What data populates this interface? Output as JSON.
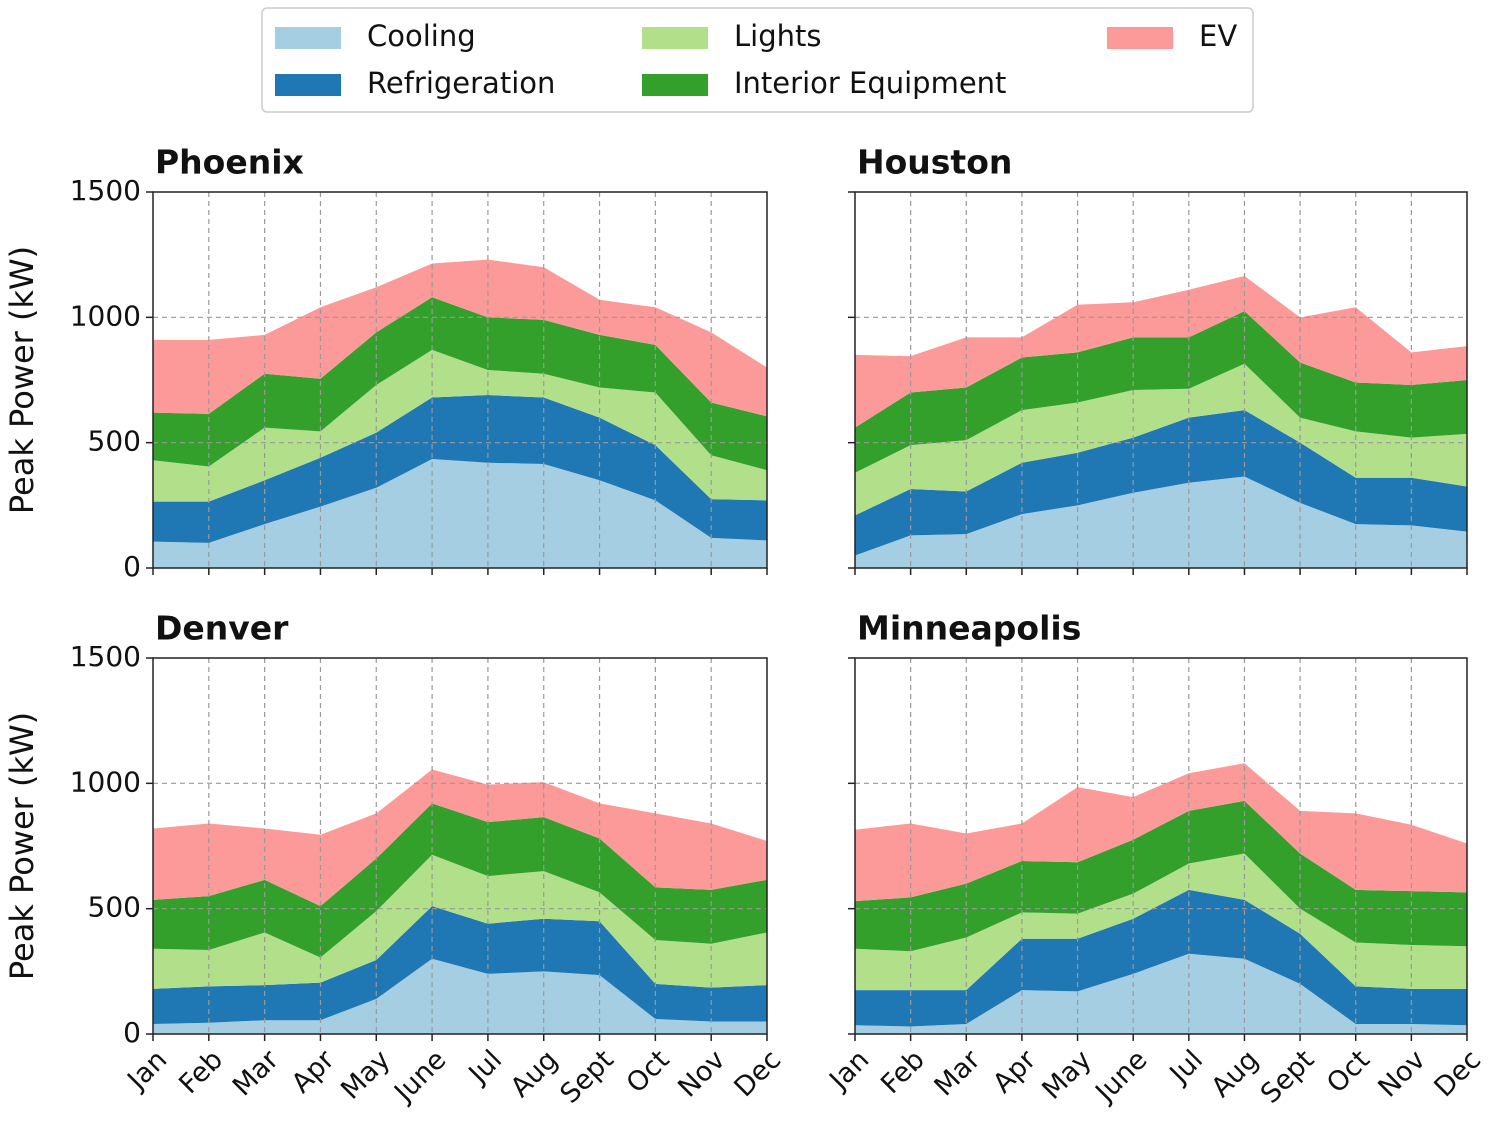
{
  "chart_data": [
    {
      "type": "area",
      "title": "Phoenix",
      "ylabel": "Peak Power (kW)",
      "ylim": [
        0,
        1500
      ],
      "yticks": [
        0,
        500,
        1000,
        1500
      ],
      "grid": true,
      "series": [
        {
          "name": "Cooling",
          "color": "#a6cee3",
          "values": [
            105,
            100,
            175,
            245,
            320,
            435,
            420,
            415,
            350,
            270,
            120,
            110
          ]
        },
        {
          "name": "Refrigeration",
          "color": "#1f78b4",
          "values": [
            160,
            165,
            175,
            195,
            220,
            245,
            270,
            265,
            250,
            220,
            155,
            160
          ]
        },
        {
          "name": "Lights",
          "color": "#b2df8a",
          "values": [
            165,
            140,
            210,
            105,
            190,
            190,
            100,
            95,
            120,
            210,
            175,
            120
          ]
        },
        {
          "name": "Interior Equipment",
          "color": "#33a02c",
          "values": [
            190,
            210,
            215,
            210,
            210,
            210,
            210,
            215,
            210,
            190,
            210,
            215
          ]
        },
        {
          "name": "EV",
          "color": "#fb9a99",
          "values": [
            290,
            295,
            155,
            285,
            180,
            135,
            230,
            210,
            140,
            150,
            280,
            195
          ]
        }
      ]
    },
    {
      "type": "area",
      "title": "Houston",
      "ylim": [
        0,
        1500
      ],
      "yticks": [
        0,
        500,
        1000,
        1500
      ],
      "grid": true,
      "series": [
        {
          "color": "#a6cee3",
          "values": [
            50,
            130,
            135,
            215,
            250,
            300,
            340,
            365,
            260,
            175,
            170,
            145
          ]
        },
        {
          "color": "#1f78b4",
          "values": [
            160,
            185,
            170,
            205,
            210,
            220,
            260,
            265,
            240,
            185,
            190,
            180
          ]
        },
        {
          "color": "#b2df8a",
          "values": [
            170,
            175,
            205,
            210,
            200,
            190,
            115,
            185,
            100,
            185,
            160,
            210
          ]
        },
        {
          "color": "#33a02c",
          "values": [
            180,
            210,
            210,
            210,
            200,
            210,
            205,
            210,
            220,
            195,
            210,
            215
          ]
        },
        {
          "color": "#fb9a99",
          "values": [
            290,
            145,
            200,
            80,
            190,
            140,
            190,
            140,
            180,
            300,
            130,
            135
          ]
        }
      ]
    },
    {
      "type": "area",
      "title": "Denver",
      "ylabel": "Peak Power (kW)",
      "categories": [
        "Jan",
        "Feb",
        "Mar",
        "Apr",
        "May",
        "June",
        "Jul",
        "Aug",
        "Sept",
        "Oct",
        "Nov",
        "Dec"
      ],
      "ylim": [
        0,
        1500
      ],
      "yticks": [
        0,
        500,
        1000,
        1500
      ],
      "grid": true,
      "series": [
        {
          "color": "#a6cee3",
          "values": [
            40,
            45,
            55,
            55,
            140,
            300,
            240,
            250,
            235,
            60,
            50,
            50
          ]
        },
        {
          "color": "#1f78b4",
          "values": [
            140,
            145,
            140,
            150,
            155,
            210,
            200,
            210,
            215,
            140,
            135,
            145
          ]
        },
        {
          "color": "#b2df8a",
          "values": [
            160,
            145,
            210,
            100,
            195,
            205,
            190,
            190,
            115,
            175,
            175,
            210
          ]
        },
        {
          "color": "#33a02c",
          "values": [
            195,
            215,
            210,
            205,
            210,
            205,
            215,
            215,
            215,
            210,
            215,
            210
          ]
        },
        {
          "color": "#fb9a99",
          "values": [
            285,
            290,
            205,
            285,
            180,
            135,
            150,
            140,
            140,
            295,
            265,
            155
          ]
        }
      ]
    },
    {
      "type": "area",
      "title": "Minneapolis",
      "categories": [
        "Jan",
        "Feb",
        "Mar",
        "Apr",
        "May",
        "June",
        "Jul",
        "Aug",
        "Sept",
        "Oct",
        "Nov",
        "Dec"
      ],
      "ylim": [
        0,
        1500
      ],
      "yticks": [
        0,
        500,
        1000,
        1500
      ],
      "grid": true,
      "series": [
        {
          "color": "#a6cee3",
          "values": [
            35,
            30,
            40,
            175,
            170,
            240,
            320,
            300,
            200,
            40,
            40,
            35
          ]
        },
        {
          "color": "#1f78b4",
          "values": [
            140,
            145,
            135,
            205,
            210,
            220,
            255,
            235,
            200,
            150,
            140,
            145
          ]
        },
        {
          "color": "#b2df8a",
          "values": [
            165,
            155,
            210,
            105,
            100,
            100,
            105,
            185,
            100,
            175,
            175,
            170
          ]
        },
        {
          "color": "#33a02c",
          "values": [
            190,
            215,
            215,
            205,
            205,
            215,
            210,
            210,
            220,
            210,
            215,
            215
          ]
        },
        {
          "color": "#fb9a99",
          "values": [
            285,
            295,
            200,
            150,
            300,
            170,
            150,
            150,
            170,
            305,
            265,
            195
          ]
        }
      ]
    }
  ]
}
